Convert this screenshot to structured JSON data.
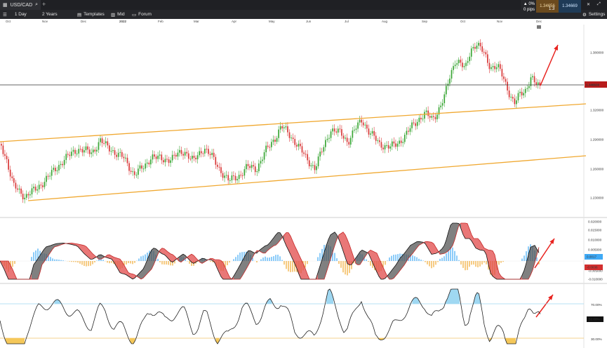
{
  "window": {
    "tab_title": "USD/CAD"
  },
  "toolbar": {
    "interval": "1 Day",
    "range": "2 Years",
    "templates": "Templates",
    "price_type": "Mid",
    "forum": "Forum",
    "settings": "Settings"
  },
  "quote": {
    "change": "0%",
    "pips": "0 pips",
    "bid": "1.34656",
    "ask": "1.34669",
    "spread": "1.3"
  },
  "time_axis": [
    "Oct",
    "Nov",
    "Dec",
    "2022",
    "Feb",
    "Mar",
    "Apr",
    "May",
    "Jun",
    "Jul",
    "Aug",
    "Sep",
    "Oct",
    "Nov",
    "Dec"
  ],
  "price_axis": [
    "1.380000",
    "1.340000",
    "1.320000",
    "1.290000",
    "1.260000",
    "1.230000"
  ],
  "last_price": "1.346630",
  "macd_axis": [
    "0.020000",
    "0.015000",
    "0.010000",
    "0.005000",
    "-0.005000",
    "-0.010000"
  ],
  "macd_values": {
    "macd": "0.0017",
    "signal": "-0.0036"
  },
  "rsi_axis": [
    "70.00%",
    "30.00%"
  ],
  "rsi_value": "52.00%",
  "colors": {
    "up_candle": "#3aa635",
    "down_candle": "#d93a3a",
    "channel": "#f0a830",
    "arrow": "#e8231f",
    "macd_fill_up": "#555555",
    "macd_fill_down": "#e24a4a",
    "hist_pos": "#3fa9f5",
    "hist_neg": "#f0a830",
    "rsi_line": "#222222",
    "rsi_level": "#9fd8f2"
  },
  "icons": [
    "chart-icon",
    "search-icon",
    "close-icon",
    "settings-icon",
    "expand-icon"
  ]
}
